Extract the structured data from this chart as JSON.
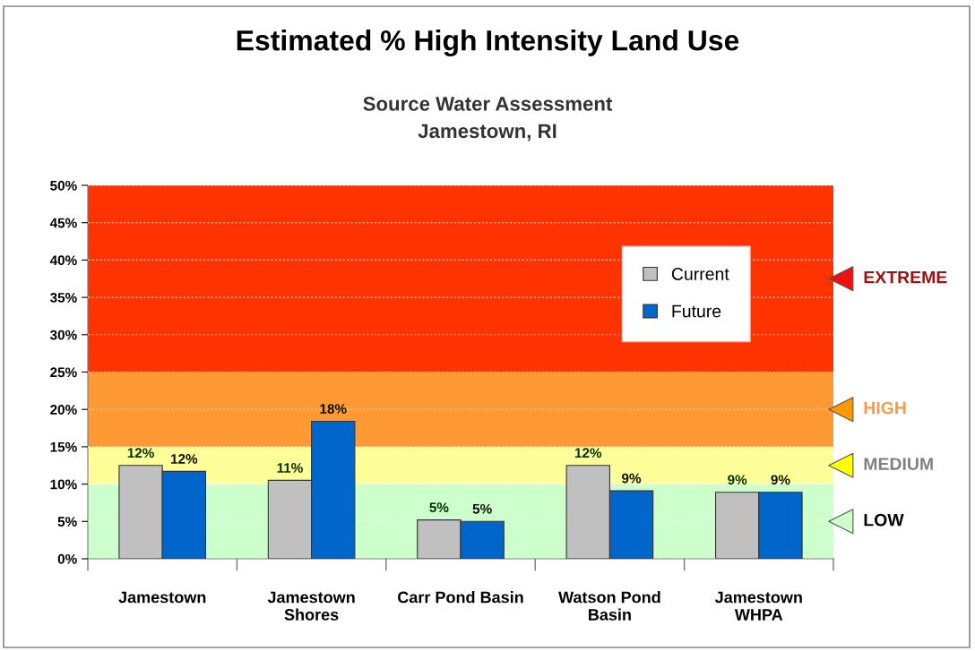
{
  "chart_data": {
    "type": "bar",
    "title": "Estimated % High Intensity Land Use",
    "subtitle": "Source Water Assessment\nJamestown, RI",
    "categories": [
      "Jamestown",
      "Jamestown\nShores",
      "Carr Pond Basin",
      "Watson Pond\nBasin",
      "Jamestown\nWHPA"
    ],
    "series": [
      {
        "name": "Current",
        "color": "#c0c0c0",
        "values": [
          12.5,
          10.5,
          5.2,
          12.5,
          8.9
        ],
        "value_labels": [
          "12%",
          "11%",
          "5%",
          "12%",
          "9%"
        ]
      },
      {
        "name": "Future",
        "color": "#0066cc",
        "values": [
          11.7,
          18.4,
          5.0,
          9.1,
          8.9
        ],
        "value_labels": [
          "12%",
          "18%",
          "5%",
          "9%",
          "9%"
        ]
      }
    ],
    "ylim": [
      0,
      50
    ],
    "yticks": [
      {
        "value": 0,
        "label": "0%"
      },
      {
        "value": 5,
        "label": "5%"
      },
      {
        "value": 10,
        "label": "10%"
      },
      {
        "value": 15,
        "label": "15%"
      },
      {
        "value": 20,
        "label": "20%"
      },
      {
        "value": 25,
        "label": "25%"
      },
      {
        "value": 30,
        "label": "30%"
      },
      {
        "value": 35,
        "label": "35%"
      },
      {
        "value": 40,
        "label": "40%"
      },
      {
        "value": 45,
        "label": "45%"
      },
      {
        "value": 50,
        "label": "50%"
      }
    ],
    "bands": [
      {
        "axis": "y",
        "from": 0,
        "to": 10,
        "label": "LOW",
        "color": "#ccffcc"
      },
      {
        "axis": "y",
        "from": 10,
        "to": 15,
        "label": "MEDIUM",
        "color": "#ffff99"
      },
      {
        "axis": "y",
        "from": 15,
        "to": 25,
        "label": "HIGH",
        "color": "#ff9933"
      },
      {
        "axis": "y",
        "from": 25,
        "to": 50,
        "label": "EXTREME",
        "color": "#ff3300"
      }
    ],
    "grid": "y",
    "legend": "top right"
  }
}
